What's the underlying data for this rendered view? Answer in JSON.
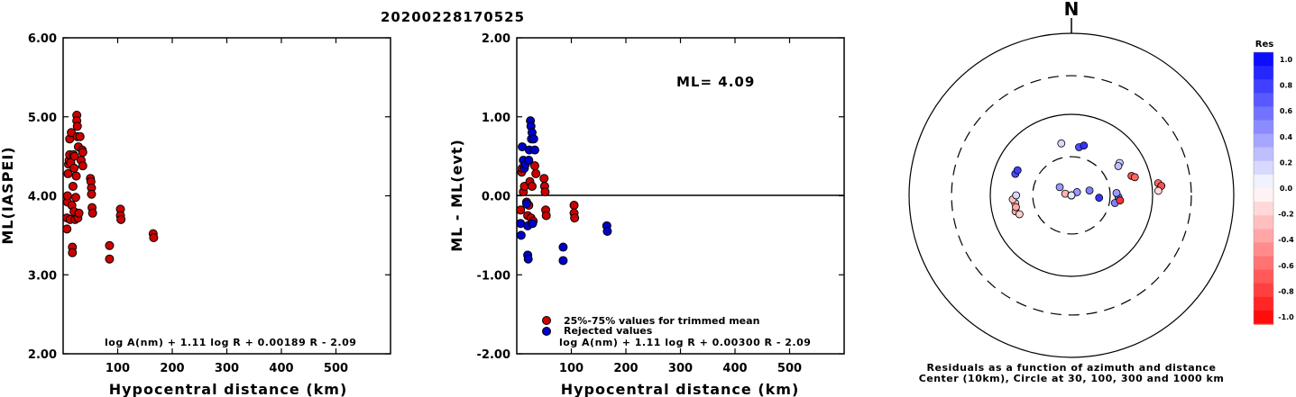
{
  "title": "20200228170525",
  "chart_data": [
    {
      "type": "scatter",
      "xlabel": "Hypocentral distance (km)",
      "ylabel": "ML(IASPEI)",
      "xlim": [
        0,
        600
      ],
      "ylim": [
        2.0,
        6.0
      ],
      "xticks": [
        "100",
        "200",
        "300",
        "400",
        "500"
      ],
      "yticks": [
        "2.00",
        "3.00",
        "4.00",
        "5.00",
        "6.00"
      ],
      "formula": "log A(nm) + 1.11 log R + 0.00189 R - 2.09",
      "color": "#cc0000",
      "points": [
        [
          7,
          3.72
        ],
        [
          7,
          3.58
        ],
        [
          8,
          3.92
        ],
        [
          8,
          4.0
        ],
        [
          9,
          4.28
        ],
        [
          10,
          4.4
        ],
        [
          11,
          4.45
        ],
        [
          12,
          4.52
        ],
        [
          12,
          4.72
        ],
        [
          13,
          3.7
        ],
        [
          14,
          4.42
        ],
        [
          15,
          4.8
        ],
        [
          16,
          3.88
        ],
        [
          17,
          3.35
        ],
        [
          17,
          3.28
        ],
        [
          18,
          4.12
        ],
        [
          19,
          4.52
        ],
        [
          20,
          4.35
        ],
        [
          20,
          3.8
        ],
        [
          21,
          4.5
        ],
        [
          22,
          3.7
        ],
        [
          23,
          3.98
        ],
        [
          24,
          4.25
        ],
        [
          25,
          5.02
        ],
        [
          25,
          4.95
        ],
        [
          26,
          4.88
        ],
        [
          26,
          4.75
        ],
        [
          27,
          3.72
        ],
        [
          28,
          4.62
        ],
        [
          29,
          3.78
        ],
        [
          31,
          4.75
        ],
        [
          33,
          4.45
        ],
        [
          35,
          4.58
        ],
        [
          36,
          4.55
        ],
        [
          36,
          4.38
        ],
        [
          50,
          4.22
        ],
        [
          51,
          4.18
        ],
        [
          52,
          4.1
        ],
        [
          52,
          4.02
        ],
        [
          53,
          3.85
        ],
        [
          54,
          3.78
        ],
        [
          85,
          3.37
        ],
        [
          85,
          3.2
        ],
        [
          105,
          3.83
        ],
        [
          105,
          3.75
        ],
        [
          106,
          3.7
        ],
        [
          165,
          3.52
        ],
        [
          166,
          3.47
        ]
      ]
    },
    {
      "type": "scatter",
      "xlabel": "Hypocentral distance (km)",
      "ylabel": "ML - ML(evt)",
      "xlim": [
        0,
        600
      ],
      "ylim": [
        -2.0,
        2.0
      ],
      "xticks": [
        "100",
        "200",
        "300",
        "400",
        "500"
      ],
      "yticks": [
        "-2.00",
        "-1.00",
        "0.00",
        "1.00",
        "2.00"
      ],
      "annotation": "ML= 4.09",
      "formula": "log A(nm) + 1.11 log R + 0.00300 R - 2.09",
      "legend": [
        {
          "label": "25%-75% values for trimmed mean",
          "color": "#cc0000"
        },
        {
          "label": "Rejected values",
          "color": "#0000cc"
        }
      ],
      "series": [
        {
          "name": "25%-75% values for trimmed mean",
          "color": "#cc0000",
          "points": [
            [
              7,
              -0.18
            ],
            [
              9,
              0.3
            ],
            [
              10,
              0.35
            ],
            [
              12,
              0.05
            ],
            [
              14,
              0.12
            ],
            [
              16,
              0.42
            ],
            [
              18,
              -0.08
            ],
            [
              20,
              -0.25
            ],
            [
              22,
              -0.12
            ],
            [
              24,
              0.18
            ],
            [
              26,
              -0.28
            ],
            [
              28,
              0.12
            ],
            [
              30,
              -0.32
            ],
            [
              33,
              0.38
            ],
            [
              35,
              0.28
            ],
            [
              50,
              0.22
            ],
            [
              51,
              0.12
            ],
            [
              52,
              0.05
            ],
            [
              53,
              -0.18
            ],
            [
              54,
              -0.25
            ],
            [
              105,
              -0.12
            ],
            [
              105,
              -0.22
            ],
            [
              106,
              -0.28
            ]
          ]
        },
        {
          "name": "Rejected values",
          "color": "#0000cc",
          "points": [
            [
              7,
              -0.35
            ],
            [
              8,
              -0.5
            ],
            [
              10,
              0.62
            ],
            [
              12,
              0.45
            ],
            [
              14,
              0.35
            ],
            [
              16,
              0.4
            ],
            [
              18,
              -0.1
            ],
            [
              20,
              -0.38
            ],
            [
              20,
              -0.75
            ],
            [
              21,
              -0.8
            ],
            [
              22,
              0.45
            ],
            [
              23,
              0.58
            ],
            [
              25,
              0.95
            ],
            [
              26,
              0.88
            ],
            [
              27,
              0.72
            ],
            [
              28,
              0.8
            ],
            [
              29,
              -0.35
            ],
            [
              31,
              0.72
            ],
            [
              33,
              0.58
            ],
            [
              85,
              -0.65
            ],
            [
              85,
              -0.82
            ],
            [
              165,
              -0.38
            ],
            [
              166,
              -0.45
            ]
          ]
        }
      ]
    },
    {
      "type": "polar-scatter",
      "north_label": "N",
      "circles_km": [
        30,
        100,
        300,
        1000
      ],
      "caption_line1": "Residuals as a function of azimuth and distance",
      "caption_line2": "Center (10km), Circle at 30, 100, 300 and 1000 km",
      "colorbar": {
        "title": "Res",
        "ticks": [
          "1.0",
          "0.8",
          "0.6",
          "0.4",
          "0.2",
          "0.0",
          "-0.2",
          "-0.4",
          "-0.6",
          "-0.8",
          "-1.0"
        ],
        "max_color": "#0000ff",
        "min_color": "#ff0000"
      },
      "stations": [
        {
          "az": 349,
          "dist": 45,
          "res": 0.15
        },
        {
          "az": 9,
          "dist": 40,
          "res": 0.7
        },
        {
          "az": 14,
          "dist": 43,
          "res": 0.8
        },
        {
          "az": 291,
          "dist": 55,
          "res": 0.7
        },
        {
          "az": 295,
          "dist": 54,
          "res": 0.75
        },
        {
          "az": 56,
          "dist": 52,
          "res": 0.2
        },
        {
          "az": 58,
          "dist": 48,
          "res": 0.25
        },
        {
          "az": 72,
          "dist": 60,
          "res": -0.7
        },
        {
          "az": 74,
          "dist": 65,
          "res": -0.6
        },
        {
          "az": 82,
          "dist": 120,
          "res": -0.6
        },
        {
          "az": 84,
          "dist": 130,
          "res": -0.7
        },
        {
          "az": 87,
          "dist": 118,
          "res": -0.15
        },
        {
          "az": 262,
          "dist": 50,
          "res": -0.2
        },
        {
          "az": 266,
          "dist": 53,
          "res": -0.25
        },
        {
          "az": 270,
          "dist": 48,
          "res": 0.15
        },
        {
          "az": 254,
          "dist": 52,
          "res": -0.3
        },
        {
          "az": 258,
          "dist": 50,
          "res": -0.35
        },
        {
          "az": 250,
          "dist": 48,
          "res": -0.2
        },
        {
          "az": 305,
          "dist": 15,
          "res": 0.4
        },
        {
          "az": 285,
          "dist": 12,
          "res": -0.3
        },
        {
          "az": 140,
          "dist": 5,
          "res": -0.2
        },
        {
          "az": 60,
          "dist": 12,
          "res": 0.4
        },
        {
          "az": 75,
          "dist": 17,
          "res": 0.5
        },
        {
          "az": 95,
          "dist": 22,
          "res": 0.8
        },
        {
          "az": 120,
          "dist": 10,
          "res": 0.3
        },
        {
          "az": 100,
          "dist": 35,
          "res": 0.5
        },
        {
          "az": 92,
          "dist": 38,
          "res": 0.6
        },
        {
          "az": 96,
          "dist": 40,
          "res": -0.8
        },
        {
          "az": 87,
          "dist": 36,
          "res": 0.4
        },
        {
          "az": 250,
          "dist": 10,
          "res": -0.4
        },
        {
          "az": 265,
          "dist": 8,
          "res": 0.1
        }
      ]
    }
  ]
}
